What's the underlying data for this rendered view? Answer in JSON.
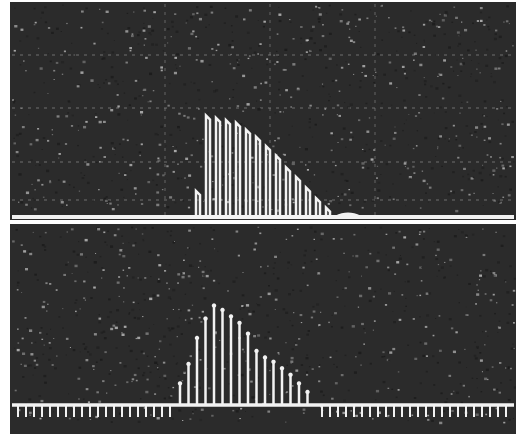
{
  "colors": {
    "page": "#ffffff",
    "screen": "#2b2b2b",
    "screen_dark": "#1a1a1a",
    "trace": "#f2f2f2",
    "grid": "#8c8c8c",
    "speckle": "#bdbdbd"
  },
  "upper_trace": {
    "baseline_pulse_count": 0,
    "envelope": [
      0.22,
      0.86,
      0.84,
      0.82,
      0.8,
      0.74,
      0.68,
      0.6,
      0.52,
      0.42,
      0.34,
      0.25,
      0.16,
      0.08
    ]
  },
  "lower_trace": {
    "baseline_pulse_count": 62,
    "envelope": [
      0.2,
      0.38,
      0.62,
      0.8,
      0.92,
      0.88,
      0.82,
      0.76,
      0.66,
      0.5,
      0.44,
      0.4,
      0.34,
      0.28,
      0.2,
      0.12
    ]
  }
}
